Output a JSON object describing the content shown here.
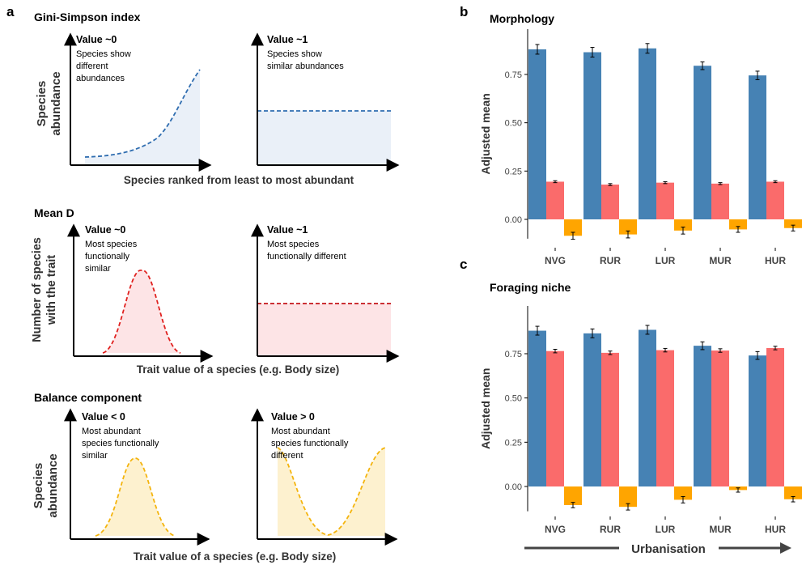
{
  "panel_letters": {
    "a": "a",
    "b": "b",
    "c": "c"
  },
  "colors": {
    "blue": "#4682b4",
    "red": "#fa6b6b",
    "orange": "#ffa500",
    "fill_blue": "#eaf0f8",
    "fill_red": "#fde4e6",
    "fill_yellow": "#fdf1cf",
    "curve_blue": "#2f6db0",
    "curve_red": "#e0201e",
    "curve_yellow": "#f4b40d"
  },
  "schematics": {
    "gini": {
      "title": "Gini-Simpson index",
      "ylabel": [
        "Species",
        "abundance"
      ],
      "xlabel": "Species ranked from least to most abundant",
      "left": {
        "value": "Value ~0",
        "desc": [
          "Species show",
          "different",
          "abundances"
        ]
      },
      "right": {
        "value": "Value ~1",
        "desc": [
          "Species show",
          "similar abundances"
        ]
      }
    },
    "meand": {
      "title": "Mean D",
      "ylabel": [
        "Number of species",
        "with the trait"
      ],
      "xlabel": "Trait value of a species (e.g. Body size)",
      "left": {
        "value": "Value ~0",
        "desc": [
          "Most species",
          "functionally",
          "similar"
        ]
      },
      "right": {
        "value": "Value ~1",
        "desc": [
          "Most species",
          "functionally different"
        ]
      }
    },
    "balance": {
      "title": "Balance component",
      "ylabel": [
        "Species",
        "abundance"
      ],
      "xlabel": "Trait value of a species (e.g. Body size)",
      "left": {
        "value": "Value < 0",
        "desc": [
          "Most abundant",
          "species functionally",
          "similar"
        ]
      },
      "right": {
        "value": "Value > 0",
        "desc": [
          "Most abundant",
          "species functionally",
          "different"
        ]
      }
    }
  },
  "urbanisation_label": "Urbanisation",
  "chart_data": [
    {
      "type": "bar",
      "title": "Morphology",
      "ylabel": "Adjusted mean",
      "xlabel": "",
      "categories": [
        "NVG",
        "RUR",
        "LUR",
        "MUR",
        "HUR"
      ],
      "ylim": [
        -0.1,
        0.95
      ],
      "yticks": [
        "0.00",
        "0.25",
        "0.50",
        "0.75"
      ],
      "series": [
        {
          "values": [
            0.88,
            0.865,
            0.885,
            0.795,
            0.745
          ],
          "errors": [
            0.025,
            0.025,
            0.025,
            0.02,
            0.022
          ],
          "color": "#4682b4"
        },
        {
          "values": [
            0.195,
            0.18,
            0.19,
            0.185,
            0.195
          ],
          "errors": [
            0.005,
            0.005,
            0.005,
            0.005,
            0.005
          ],
          "color": "#fa6b6b"
        },
        {
          "values": [
            -0.085,
            -0.078,
            -0.058,
            -0.052,
            -0.045
          ],
          "errors": [
            0.018,
            0.018,
            0.018,
            0.015,
            0.015
          ],
          "color": "#ffa500"
        }
      ],
      "grid": false
    },
    {
      "type": "bar",
      "title": "Foraging niche",
      "ylabel": "Adjusted mean",
      "xlabel": "",
      "categories": [
        "NVG",
        "RUR",
        "LUR",
        "MUR",
        "HUR"
      ],
      "ylim": [
        -0.14,
        0.95
      ],
      "yticks": [
        "0.00",
        "0.25",
        "0.50",
        "0.75"
      ],
      "series": [
        {
          "values": [
            0.88,
            0.865,
            0.885,
            0.795,
            0.74
          ],
          "errors": [
            0.025,
            0.025,
            0.025,
            0.022,
            0.022
          ],
          "color": "#4682b4"
        },
        {
          "values": [
            0.765,
            0.755,
            0.77,
            0.768,
            0.782
          ],
          "errors": [
            0.01,
            0.01,
            0.01,
            0.01,
            0.01
          ],
          "color": "#fa6b6b"
        },
        {
          "values": [
            -0.105,
            -0.115,
            -0.075,
            -0.02,
            -0.072
          ],
          "errors": [
            0.015,
            0.018,
            0.018,
            0.012,
            0.015
          ],
          "color": "#ffa500"
        }
      ],
      "grid": false
    }
  ]
}
